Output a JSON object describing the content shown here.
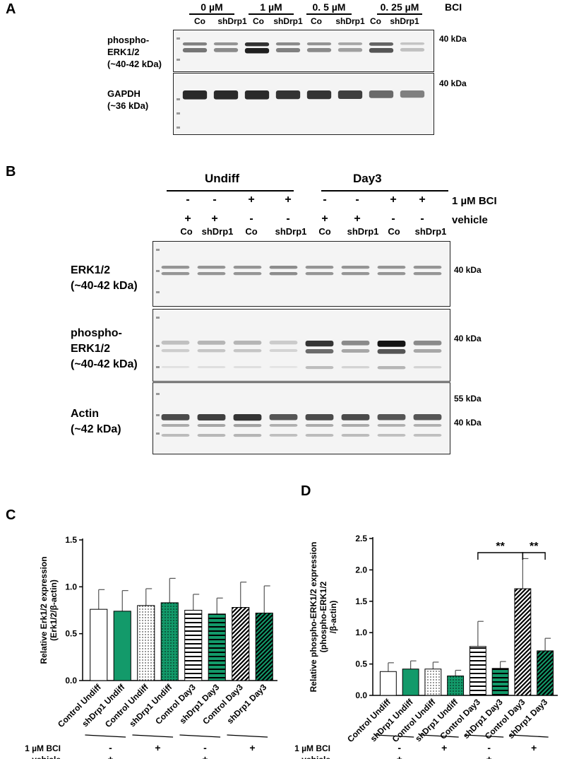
{
  "panelA": {
    "letter": "A",
    "concentrations": [
      "0 µM",
      "1 µM",
      "0. 5 µM",
      "0. 25 µM"
    ],
    "bci_label": "BCI",
    "lanes": [
      "Co",
      "shDrp1",
      "Co",
      "shDrp1",
      "Co",
      "shDrp1",
      "Co",
      "shDrp1"
    ],
    "blot1_label": [
      "phospho-",
      "ERK1/2",
      "(~40-42 kDa)"
    ],
    "blot1_kda": "40 kDa",
    "blot2_label": [
      "GAPDH",
      "(~36 kDa)"
    ],
    "blot2_kda": "40 kDa",
    "pERK_intensity": [
      0.55,
      0.45,
      0.95,
      0.5,
      0.45,
      0.35,
      0.7,
      0.2
    ],
    "gapdh_intensity": [
      0.9,
      0.9,
      0.9,
      0.85,
      0.85,
      0.8,
      0.6,
      0.5
    ]
  },
  "panelB": {
    "letter": "B",
    "group_undiff": "Undiff",
    "group_day3": "Day3",
    "bci_row_label": "1 µM BCI",
    "vehicle_row_label": "vehicle",
    "bci_signs": [
      "-",
      "-",
      "+",
      "+",
      "-",
      "-",
      "+",
      "+"
    ],
    "vehicle_signs": [
      "+",
      "+",
      "-",
      "-",
      "+",
      "+",
      "-",
      "-"
    ],
    "lanes": [
      "Co",
      "shDrp1",
      "Co",
      "shDrp1",
      "Co",
      "shDrp1",
      "Co",
      "shDrp1"
    ],
    "blot1_label": [
      "ERK1/2",
      "(~40-42 kDa)"
    ],
    "blot1_kda": "40 kDa",
    "blot2_label": [
      "phospho-",
      "ERK1/2",
      "(~40-42 kDa)"
    ],
    "blot2_kda": "40 kDa",
    "blot3_label": [
      "Actin",
      "(~42 kDa)"
    ],
    "blot3_kda_top": "55 kDa",
    "blot3_kda_bottom": "40 kDa",
    "erk_intensity": [
      0.5,
      0.5,
      0.5,
      0.55,
      0.5,
      0.5,
      0.5,
      0.5
    ],
    "perk_intensity": [
      0.2,
      0.25,
      0.25,
      0.15,
      0.85,
      0.45,
      1.0,
      0.45
    ],
    "actin_intensity": [
      0.75,
      0.8,
      0.85,
      0.7,
      0.75,
      0.75,
      0.7,
      0.7
    ]
  },
  "panelC": {
    "letter": "C"
  },
  "panelD": {
    "letter": "D"
  },
  "bottom_rows": {
    "bci_label": "1 µM BCI",
    "vehicle_label": "vehicle",
    "bci_signs": [
      "-",
      "+",
      "-",
      "+"
    ],
    "vehicle_signs": [
      "+",
      "-",
      "+",
      "-"
    ]
  },
  "chart_data": [
    {
      "type": "bar",
      "panel": "C",
      "title": "",
      "ylabel": "Relative Erk1/2 expression (Erk1/2/β-actin)",
      "ylabel_lines": [
        "Relative Erk1/2 expression",
        "(Erk1/2/β-actin)"
      ],
      "xlabel": "",
      "categories": [
        "Control Undiff",
        "shDrp1 Undiff",
        "Control Undiff",
        "shDrp1 Undiff",
        "Control Day3",
        "shDrp1 Day3",
        "Control Day3",
        "shDrp1 Day3"
      ],
      "values": [
        0.76,
        0.74,
        0.8,
        0.83,
        0.75,
        0.71,
        0.78,
        0.72
      ],
      "errors": [
        0.21,
        0.22,
        0.18,
        0.26,
        0.17,
        0.17,
        0.27,
        0.29
      ],
      "ylim": [
        0,
        1.5
      ],
      "yticks": [
        "0.0",
        "0.5",
        "1.0",
        "1.5"
      ],
      "fills": [
        "white",
        "green",
        "dots-white",
        "dots-green",
        "hlines-white",
        "hlines-green",
        "diag-white",
        "diag-green"
      ],
      "colors": {
        "green": "#139a6a",
        "edge": "#000000"
      },
      "significance": []
    },
    {
      "type": "bar",
      "panel": "D",
      "title": "",
      "ylabel": "Relative phospho-ERK1/2 expression (phospho-ERK1/2 /β-actin)",
      "ylabel_lines": [
        "Relative phospho-ERK1/2 expression",
        "(phospho-ERK1/2",
        "/β-actin)"
      ],
      "xlabel": "",
      "categories": [
        "Control Undiff",
        "shDrp1 Undiff",
        "Control Undiff",
        "shDrp1 Undiff",
        "Control Day3",
        "shDrp1 Day3",
        "Control Day3",
        "shDrp1 Day3"
      ],
      "values": [
        0.38,
        0.42,
        0.42,
        0.31,
        0.78,
        0.43,
        1.7,
        0.71
      ],
      "errors": [
        0.14,
        0.13,
        0.11,
        0.09,
        0.4,
        0.11,
        0.48,
        0.2
      ],
      "ylim": [
        0,
        2.5
      ],
      "yticks": [
        "0.0",
        "0.5",
        "1.0",
        "1.5",
        "2.0",
        "2.5"
      ],
      "fills": [
        "white",
        "green",
        "dots-white",
        "dots-green",
        "hlines-white",
        "hlines-green",
        "diag-white",
        "diag-green"
      ],
      "colors": {
        "green": "#139a6a",
        "edge": "#000000"
      },
      "significance": [
        {
          "from": 4,
          "to": 6,
          "label": "**"
        },
        {
          "from": 6,
          "to": 7,
          "label": "**"
        }
      ]
    }
  ]
}
